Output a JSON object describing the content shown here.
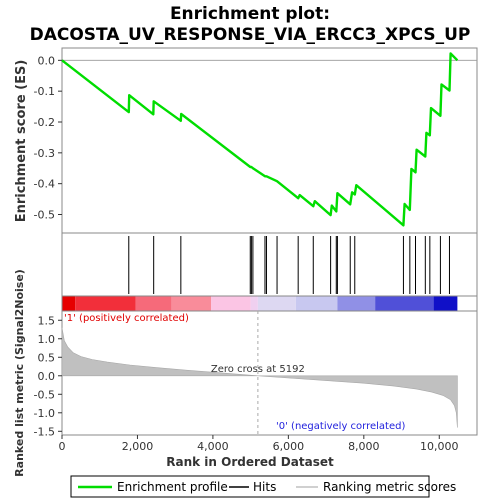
{
  "chart_data": {
    "type": "line",
    "title_line1": "Enrichment plot:",
    "title_line2": "DACOSTA_UV_RESPONSE_VIA_ERCC3_XPCS_UP",
    "es_panel": {
      "ylabel": "Enrichment score (ES)",
      "yticks": [
        0.0,
        -0.1,
        -0.2,
        -0.3,
        -0.4,
        -0.5
      ],
      "ytick_labels": [
        "0.0",
        "-0.1",
        "-0.2",
        "-0.3",
        "-0.4",
        "-0.5"
      ],
      "ylim": [
        -0.56,
        0.04
      ],
      "series": [
        {
          "name": "Enrichment profile",
          "color": "#00dd00",
          "x": [
            0,
            1770,
            1780,
            2420,
            2430,
            3150,
            3160,
            4990,
            5020,
            5060,
            5380,
            5420,
            5700,
            6260,
            6300,
            6660,
            6700,
            7120,
            7150,
            7270,
            7300,
            7640,
            7690,
            7760,
            7800,
            9050,
            9080,
            9220,
            9260,
            9370,
            9400,
            9630,
            9660,
            9750,
            9780,
            10030,
            10060,
            10270,
            10300,
            10480
          ],
          "y": [
            0.0,
            -0.168,
            -0.113,
            -0.175,
            -0.133,
            -0.196,
            -0.174,
            -0.346,
            -0.346,
            -0.35,
            -0.376,
            -0.376,
            -0.392,
            -0.447,
            -0.437,
            -0.473,
            -0.457,
            -0.502,
            -0.471,
            -0.49,
            -0.431,
            -0.467,
            -0.428,
            -0.435,
            -0.405,
            -0.535,
            -0.466,
            -0.485,
            -0.352,
            -0.363,
            -0.29,
            -0.312,
            -0.235,
            -0.243,
            -0.155,
            -0.18,
            -0.078,
            -0.098,
            0.022,
            0.0
          ]
        }
      ]
    },
    "hits_panel": {
      "legend_label": "Hits",
      "hit_positions": [
        1770,
        2430,
        3150,
        4990,
        5020,
        5060,
        5380,
        5420,
        5700,
        6260,
        6660,
        7120,
        7270,
        7300,
        7640,
        7760,
        9050,
        9220,
        9370,
        9630,
        9750,
        10030,
        10270
      ]
    },
    "colorbar": {
      "segments": [
        {
          "from": 0,
          "to": 350,
          "color": "#e60000"
        },
        {
          "from": 350,
          "to": 1950,
          "color": "#f22f3a"
        },
        {
          "from": 1950,
          "to": 2900,
          "color": "#f66a7a"
        },
        {
          "from": 2900,
          "to": 3950,
          "color": "#f98c9a"
        },
        {
          "from": 3950,
          "to": 5000,
          "color": "#fbc5e4"
        },
        {
          "from": 5000,
          "to": 5192,
          "color": "#f0d0f0"
        },
        {
          "from": 5192,
          "to": 6200,
          "color": "#ddd8f2"
        },
        {
          "from": 6200,
          "to": 7300,
          "color": "#c8c8f0"
        },
        {
          "from": 7300,
          "to": 8300,
          "color": "#9090e6"
        },
        {
          "from": 8300,
          "to": 9850,
          "color": "#5050d8"
        },
        {
          "from": 9850,
          "to": 10480,
          "color": "#1010c8"
        }
      ]
    },
    "metric_panel": {
      "ylabel": "Ranked list metric (Signal2Noise)",
      "yticks": [
        1.5,
        1.0,
        0.5,
        0.0,
        -0.5,
        -1.0,
        -1.5
      ],
      "ytick_labels": [
        "1.5",
        "1.0",
        "0.5",
        "0.0",
        "-0.5",
        "-1.0",
        "-1.5"
      ],
      "ylim": [
        -1.6,
        1.75
      ],
      "curve_x": [
        0,
        60,
        150,
        300,
        500,
        800,
        1200,
        1800,
        2500,
        3300,
        4200,
        5192,
        6000,
        7000,
        8000,
        8800,
        9400,
        9800,
        10100,
        10300,
        10400,
        10450,
        10480
      ],
      "curve_y": [
        1.3,
        0.95,
        0.78,
        0.62,
        0.52,
        0.44,
        0.37,
        0.29,
        0.22,
        0.15,
        0.08,
        0.0,
        -0.06,
        -0.13,
        -0.2,
        -0.28,
        -0.36,
        -0.44,
        -0.53,
        -0.65,
        -0.8,
        -1.0,
        -1.4
      ],
      "zero_cross_label": "Zero cross at 5192",
      "zero_cross": 5192,
      "pos_label": "'1' (positively correlated)",
      "neg_label": "'0' (negatively correlated)"
    },
    "xaxis": {
      "label": "Rank in Ordered Dataset",
      "ticks": [
        0,
        2000,
        4000,
        6000,
        8000,
        10000
      ],
      "tick_labels": [
        "0",
        "2,000",
        "4,000",
        "6,000",
        "8,000",
        "10,000"
      ],
      "xlim": [
        0,
        11000
      ]
    },
    "legend": {
      "items": [
        {
          "label": "Enrichment profile",
          "color": "#00dd00"
        },
        {
          "label": "Hits",
          "color": "#000000"
        },
        {
          "label": "Ranking metric scores",
          "color": "#c0c0c0"
        }
      ]
    }
  }
}
